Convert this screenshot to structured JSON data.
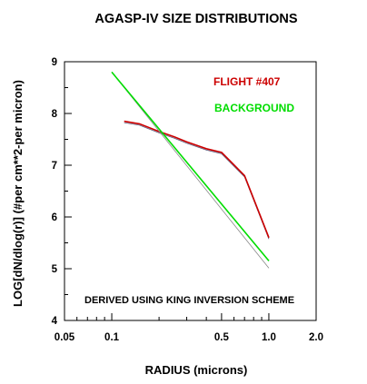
{
  "chart_data": {
    "type": "line",
    "title": "AGASP-IV  SIZE DISTRIBUTIONS",
    "xlabel": "RADIUS (microns)",
    "ylabel": "LOG[dN/dlog(r)] (#per cm**2-per micron)",
    "x_scale": "log",
    "xlim": [
      0.05,
      2.0
    ],
    "ylim": [
      4,
      9
    ],
    "xticks": [
      0.05,
      0.1,
      0.5,
      1.0,
      2.0
    ],
    "xtick_labels": [
      "0.05",
      "0.1",
      "0.5",
      "1.0",
      "2.0"
    ],
    "yticks": [
      4,
      5,
      6,
      7,
      8,
      9
    ],
    "ytick_labels": [
      "4",
      "5",
      "6",
      "7",
      "8",
      "9"
    ],
    "grid": false,
    "legend_position": "top-right",
    "annotation": "DERIVED USING KING INVERSION SCHEME",
    "series": [
      {
        "name": "FLIGHT #407",
        "color": "#cc0000",
        "x": [
          0.12,
          0.15,
          0.2,
          0.25,
          0.3,
          0.4,
          0.5,
          0.7,
          1.0
        ],
        "y": [
          7.85,
          7.8,
          7.65,
          7.55,
          7.45,
          7.32,
          7.25,
          6.8,
          5.6
        ]
      },
      {
        "name": "BACKGROUND",
        "color": "#00dd00",
        "x": [
          0.1,
          1.0
        ],
        "y": [
          8.8,
          5.15
        ]
      }
    ]
  }
}
